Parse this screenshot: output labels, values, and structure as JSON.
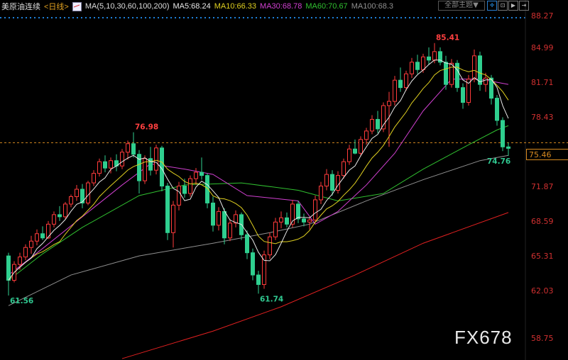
{
  "header": {
    "symbol": "美原油连续",
    "period": "<日线>",
    "ma_params": "MA(5,10,30,60,100,200)",
    "ma5": "MA5:68.24",
    "ma10": "MA10:66.33",
    "ma30": "MA30:68.78",
    "ma60": "MA60:70.67",
    "ma100": "MA100:68.3"
  },
  "toolbar": {
    "theme_label": "全部主题▼",
    "icons": [
      "crosshair-icon",
      "zoom-in-icon",
      "play-icon",
      "jump-end-icon"
    ]
  },
  "watermark": "FX678",
  "colors": {
    "up": "#ff3b3b",
    "down": "#2fcf8f",
    "ma5": "#e8e8e8",
    "ma10": "#e0d020",
    "ma30": "#d040d0",
    "ma60": "#30c030",
    "ma100": "#909090",
    "ma200": "#e02020",
    "last_price": "#d88a20",
    "label_high": "#ff4040",
    "label_low": "#30c890",
    "axis": "#d03030"
  },
  "chart_data": {
    "type": "candlestick",
    "ylim": [
      58.75,
      88.27
    ],
    "y_ticks": [
      "88.27",
      "84.99",
      "81.71",
      "78.43",
      "71.87",
      "68.59",
      "65.31",
      "62.03",
      "58.75"
    ],
    "last_price": "75.46",
    "annotations": [
      {
        "text": "61.56",
        "bar": 0,
        "value": 61.56,
        "kind": "low"
      },
      {
        "text": "76.98",
        "bar": 22,
        "value": 76.98,
        "kind": "high"
      },
      {
        "text": "61.74",
        "bar": 44,
        "value": 61.74,
        "kind": "low"
      },
      {
        "text": "85.41",
        "bar": 75,
        "value": 85.41,
        "kind": "high"
      },
      {
        "text": "74.76",
        "bar": 88,
        "value": 74.76,
        "kind": "low"
      }
    ],
    "ohlc": [
      [
        65.3,
        65.6,
        61.56,
        63.0
      ],
      [
        63,
        64.8,
        62.8,
        64.5
      ],
      [
        64.5,
        65.6,
        64.0,
        65.2
      ],
      [
        65.2,
        66.4,
        64.9,
        66.1
      ],
      [
        66.1,
        67.2,
        65.5,
        66.7
      ],
      [
        66.7,
        67.8,
        66.3,
        67.4
      ],
      [
        67.4,
        68.1,
        66.8,
        67.0
      ],
      [
        67.0,
        68.6,
        66.9,
        68.3
      ],
      [
        68.3,
        69.5,
        68.0,
        69.2
      ],
      [
        69.2,
        70.0,
        68.6,
        69.0
      ],
      [
        69.0,
        70.4,
        68.8,
        70.2
      ],
      [
        70.2,
        71.1,
        69.9,
        70.9
      ],
      [
        70.9,
        72.0,
        70.5,
        71.6
      ],
      [
        71.6,
        72.1,
        69.8,
        70.3
      ],
      [
        70.3,
        72.4,
        70.1,
        72.2
      ],
      [
        72.2,
        73.4,
        71.9,
        73.1
      ],
      [
        73.1,
        74.5,
        72.8,
        74.2
      ],
      [
        74.2,
        74.8,
        73.2,
        73.6
      ],
      [
        73.6,
        74.6,
        73.1,
        74.3
      ],
      [
        74.3,
        74.9,
        73.3,
        73.8
      ],
      [
        73.8,
        75.4,
        73.5,
        75.1
      ],
      [
        75.1,
        76.2,
        74.4,
        75.9
      ],
      [
        75.9,
        76.98,
        74.6,
        74.9
      ],
      [
        74.9,
        75.3,
        71.2,
        72.4
      ],
      [
        72.4,
        74.8,
        72.1,
        74.5
      ],
      [
        74.5,
        75.6,
        72.9,
        73.4
      ],
      [
        73.4,
        75.8,
        73.0,
        75.5
      ],
      [
        75.5,
        75.7,
        71.4,
        71.9
      ],
      [
        71.9,
        72.2,
        66.8,
        67.5
      ],
      [
        67.5,
        70.5,
        66.1,
        70.1
      ],
      [
        70.1,
        72.3,
        69.6,
        71.9
      ],
      [
        71.9,
        72.6,
        70.8,
        71.2
      ],
      [
        71.2,
        72.9,
        70.9,
        72.6
      ],
      [
        72.6,
        73.6,
        72.0,
        73.2
      ],
      [
        73.2,
        74.6,
        72.5,
        72.9
      ],
      [
        72.9,
        73.1,
        69.8,
        70.3
      ],
      [
        70.3,
        70.9,
        67.6,
        68.2
      ],
      [
        68.2,
        69.9,
        67.7,
        69.5
      ],
      [
        69.5,
        69.8,
        66.4,
        67.0
      ],
      [
        67.0,
        68.8,
        66.7,
        68.4
      ],
      [
        68.4,
        69.6,
        68.0,
        69.2
      ],
      [
        69.2,
        69.4,
        66.8,
        67.3
      ],
      [
        67.3,
        67.7,
        65.0,
        65.6
      ],
      [
        65.6,
        66.0,
        63.0,
        63.5
      ],
      [
        63.5,
        63.9,
        61.74,
        62.6
      ],
      [
        62.6,
        65.8,
        62.2,
        65.4
      ],
      [
        65.4,
        67.5,
        65.0,
        67.1
      ],
      [
        67.1,
        68.9,
        66.8,
        68.5
      ],
      [
        68.5,
        69.5,
        67.9,
        68.9
      ],
      [
        68.9,
        69.4,
        68.0,
        68.3
      ],
      [
        68.3,
        70.6,
        68.0,
        70.2
      ],
      [
        70.2,
        70.5,
        68.4,
        68.8
      ],
      [
        68.8,
        69.3,
        68.1,
        68.5
      ],
      [
        68.5,
        69.0,
        67.8,
        68.7
      ],
      [
        68.7,
        71.0,
        68.4,
        70.6
      ],
      [
        70.6,
        72.3,
        70.2,
        71.9
      ],
      [
        71.9,
        73.5,
        71.5,
        73.0
      ],
      [
        73.0,
        73.4,
        71.0,
        71.5
      ],
      [
        71.5,
        73.3,
        71.2,
        72.9
      ],
      [
        72.9,
        74.5,
        72.6,
        74.2
      ],
      [
        74.2,
        75.8,
        73.9,
        75.4
      ],
      [
        75.4,
        76.3,
        74.9,
        75.0
      ],
      [
        75.0,
        76.6,
        74.7,
        76.3
      ],
      [
        76.3,
        77.4,
        75.8,
        77.1
      ],
      [
        77.1,
        78.6,
        76.8,
        78.2
      ],
      [
        78.2,
        79.0,
        76.9,
        77.3
      ],
      [
        77.3,
        79.8,
        77.0,
        79.5
      ],
      [
        79.5,
        80.8,
        75.6,
        79.9
      ],
      [
        79.9,
        82.3,
        79.5,
        81.9
      ],
      [
        81.9,
        83.1,
        80.8,
        81.2
      ],
      [
        81.2,
        82.8,
        80.9,
        82.5
      ],
      [
        82.5,
        84.0,
        82.1,
        83.6
      ],
      [
        83.6,
        84.3,
        82.5,
        82.9
      ],
      [
        82.9,
        84.4,
        82.6,
        84.1
      ],
      [
        84.1,
        85.0,
        83.4,
        83.8
      ],
      [
        83.8,
        85.41,
        83.5,
        84.6
      ],
      [
        84.6,
        85.0,
        83.3,
        83.6
      ],
      [
        83.6,
        84.2,
        81.0,
        81.5
      ],
      [
        81.5,
        83.9,
        81.2,
        83.5
      ],
      [
        83.5,
        83.8,
        80.8,
        81.2
      ],
      [
        81.2,
        81.6,
        79.2,
        79.8
      ],
      [
        79.8,
        82.4,
        79.5,
        82.0
      ],
      [
        82.0,
        84.8,
        81.7,
        84.2
      ],
      [
        84.2,
        84.6,
        80.9,
        81.5
      ],
      [
        81.5,
        82.6,
        80.8,
        82.1
      ],
      [
        82.1,
        82.4,
        79.6,
        80.2
      ],
      [
        80.2,
        80.5,
        77.6,
        78.1
      ],
      [
        78.1,
        78.4,
        75.2,
        75.6
      ],
      [
        75.6,
        76.0,
        74.76,
        75.46
      ]
    ],
    "ma_long": {
      "ma30": [
        [
          0,
          63.5
        ],
        [
          6,
          66
        ],
        [
          13,
          69
        ],
        [
          20,
          72
        ],
        [
          25,
          74
        ],
        [
          31,
          73.5
        ],
        [
          36,
          73
        ],
        [
          42,
          71
        ],
        [
          51,
          70.5
        ],
        [
          54,
          68.3
        ],
        [
          58,
          69.5
        ],
        [
          63,
          72
        ],
        [
          68,
          75
        ],
        [
          73,
          79
        ],
        [
          78,
          82
        ],
        [
          83,
          82
        ],
        [
          88,
          81.5
        ]
      ],
      "ma60": [
        [
          0,
          63
        ],
        [
          6,
          65.5
        ],
        [
          13,
          68
        ],
        [
          23,
          71
        ],
        [
          31,
          72
        ],
        [
          41,
          72.2
        ],
        [
          51,
          71.5
        ],
        [
          58,
          70.5
        ],
        [
          66,
          71.2
        ],
        [
          73,
          73.5
        ],
        [
          81,
          75.8
        ],
        [
          86,
          77.2
        ],
        [
          88,
          77.6
        ]
      ],
      "ma100": [
        [
          0,
          60.6
        ],
        [
          11,
          63.5
        ],
        [
          23,
          65.3
        ],
        [
          36,
          66.5
        ],
        [
          46,
          67.5
        ],
        [
          53,
          68.3
        ],
        [
          63,
          70.5
        ],
        [
          73,
          72.5
        ],
        [
          83,
          74.3
        ],
        [
          88,
          74.8
        ]
      ],
      "ma200": [
        [
          20,
          55.6
        ],
        [
          36,
          58.2
        ],
        [
          48,
          60.5
        ],
        [
          61,
          63.5
        ],
        [
          73,
          66.5
        ],
        [
          88,
          69.4
        ]
      ]
    }
  }
}
